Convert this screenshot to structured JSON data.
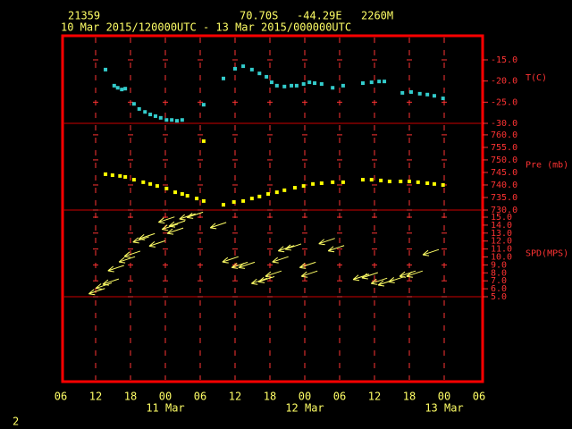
{
  "header": {
    "station": "21359",
    "lat": "70.70S",
    "lon": "-44.29E",
    "elevation": "2260M",
    "period": "10 Mar 2015/120000UTC - 13 Mar 2015/000000UTC",
    "page": "2"
  },
  "x_axis": {
    "xlim": [
      0,
      72
    ],
    "xticks": [
      {
        "value": 0,
        "label": "06"
      },
      {
        "value": 6,
        "label": "12"
      },
      {
        "value": 12,
        "label": "18"
      },
      {
        "value": 18,
        "label": "00"
      },
      {
        "value": 24,
        "label": "06"
      },
      {
        "value": 30,
        "label": "12"
      },
      {
        "value": 36,
        "label": "18"
      },
      {
        "value": 42,
        "label": "00"
      },
      {
        "value": 48,
        "label": "06"
      },
      {
        "value": 54,
        "label": "12"
      },
      {
        "value": 60,
        "label": "18"
      },
      {
        "value": 66,
        "label": "00"
      },
      {
        "value": 72,
        "label": "06"
      }
    ],
    "dates": [
      {
        "value": 18,
        "label": "11 Mar"
      },
      {
        "value": 42,
        "label": "12 Mar"
      },
      {
        "value": 66,
        "label": "13 Mar"
      }
    ]
  },
  "chart_data": [
    {
      "type": "scatter",
      "y_label": "T(C)",
      "color": "#33cccc",
      "ylim": [
        -30,
        -9.3
      ],
      "yticks": [
        {
          "value": -15,
          "label": "-15.0"
        },
        {
          "value": -20,
          "label": "-20.0"
        },
        {
          "value": -25,
          "label": "-25.0"
        },
        {
          "value": -30,
          "label": "-30.0"
        }
      ],
      "x": [
        7.7,
        9.2,
        9.8,
        10.5,
        11.1,
        12.6,
        13.5,
        14.5,
        15.4,
        16.3,
        17.2,
        18.2,
        19.1,
        20.0,
        20.9,
        24.6,
        28.0,
        30.0,
        31.4,
        32.9,
        34.2,
        35.4,
        36.3,
        37.2,
        38.5,
        39.7,
        40.6,
        41.8,
        42.8,
        43.7,
        44.9,
        46.8,
        48.6,
        52.0,
        53.5,
        54.8,
        55.7,
        58.8,
        60.3,
        61.8,
        63.1,
        64.3,
        65.8
      ],
      "values": [
        -17.3,
        -21.1,
        -21.6,
        -22.0,
        -21.8,
        -25.4,
        -26.6,
        -27.3,
        -27.9,
        -28.3,
        -28.7,
        -29.2,
        -29.2,
        -29.4,
        -29.2,
        -25.6,
        -19.4,
        -17.1,
        -16.5,
        -17.3,
        -18.2,
        -19.0,
        -20.3,
        -21.1,
        -21.3,
        -21.1,
        -21.1,
        -20.7,
        -20.3,
        -20.5,
        -20.7,
        -21.6,
        -21.1,
        -20.5,
        -20.3,
        -20.1,
        -20.1,
        -22.8,
        -22.6,
        -23.0,
        -23.2,
        -23.5,
        -24.1
      ]
    },
    {
      "type": "scatter",
      "y_label": "Pre (mb)",
      "color": "#ffff00",
      "ylim": [
        730,
        764.6
      ],
      "yticks": [
        {
          "value": 730,
          "label": "730.0"
        },
        {
          "value": 735,
          "label": "735.0"
        },
        {
          "value": 740,
          "label": "740.0"
        },
        {
          "value": 745,
          "label": "745.0"
        },
        {
          "value": 750,
          "label": "750.0"
        },
        {
          "value": 755,
          "label": "755.0"
        },
        {
          "value": 760,
          "label": "760.0"
        }
      ],
      "x": [
        7.7,
        8.9,
        10.2,
        11.1,
        12.6,
        14.2,
        15.4,
        16.6,
        18.2,
        19.7,
        20.9,
        21.8,
        23.4,
        24.6,
        24.6,
        28.0,
        29.8,
        31.4,
        32.9,
        34.2,
        35.7,
        37.2,
        38.5,
        40.3,
        41.8,
        43.4,
        44.9,
        46.8,
        48.6,
        52.0,
        53.5,
        55.1,
        56.6,
        58.5,
        60.0,
        61.5,
        63.1,
        64.3,
        65.8
      ],
      "values": [
        744.3,
        743.9,
        743.6,
        743.2,
        742.1,
        741.1,
        740.4,
        739.6,
        738.6,
        737.1,
        736.4,
        735.7,
        734.6,
        733.6,
        757.5,
        732.1,
        733.2,
        733.6,
        734.6,
        735.4,
        736.4,
        737.1,
        737.9,
        738.9,
        739.6,
        740.4,
        740.7,
        741.1,
        741.1,
        742.1,
        742.1,
        741.8,
        741.4,
        741.4,
        741.4,
        741.1,
        740.7,
        740.4,
        740.0
      ]
    },
    {
      "type": "wind",
      "y_label": "SPD(MPS)",
      "color": "#ffff66",
      "ylim": [
        5,
        15.9
      ],
      "yticks": [
        {
          "value": 5,
          "label": "5.0"
        },
        {
          "value": 6,
          "label": "6.0"
        },
        {
          "value": 7,
          "label": "7.0"
        },
        {
          "value": 8,
          "label": "8.0"
        },
        {
          "value": 9,
          "label": "9.0"
        },
        {
          "value": 10,
          "label": "10.0"
        },
        {
          "value": 11,
          "label": "11.0"
        },
        {
          "value": 12,
          "label": "12.0"
        },
        {
          "value": 13,
          "label": "13.0"
        },
        {
          "value": 14,
          "label": "14.0"
        },
        {
          "value": 15,
          "label": "15.0"
        }
      ],
      "x": [
        6.2,
        7.4,
        8.6,
        9.5,
        11.4,
        12.3,
        13.8,
        14.8,
        16.6,
        18.2,
        18.8,
        19.7,
        20.0,
        21.8,
        23.1,
        27.1,
        29.2,
        30.8,
        32.0,
        34.2,
        35.4,
        36.6,
        37.8,
        38.8,
        40.0,
        42.5,
        42.8,
        45.8,
        47.4,
        51.7,
        53.2,
        54.8,
        56.0,
        57.8,
        59.7,
        60.9,
        63.7
      ],
      "values": [
        5.7,
        6.4,
        6.9,
        8.6,
        9.7,
        10.4,
        12.2,
        12.6,
        11.7,
        14.7,
        13.8,
        13.3,
        14.2,
        15.1,
        15.3,
        14.0,
        9.7,
        9.0,
        9.0,
        7.0,
        7.2,
        7.9,
        9.7,
        11.1,
        11.3,
        9.0,
        7.9,
        12.0,
        11.1,
        7.5,
        7.7,
        7.0,
        6.8,
        7.2,
        7.9,
        7.9,
        10.6
      ]
    }
  ]
}
